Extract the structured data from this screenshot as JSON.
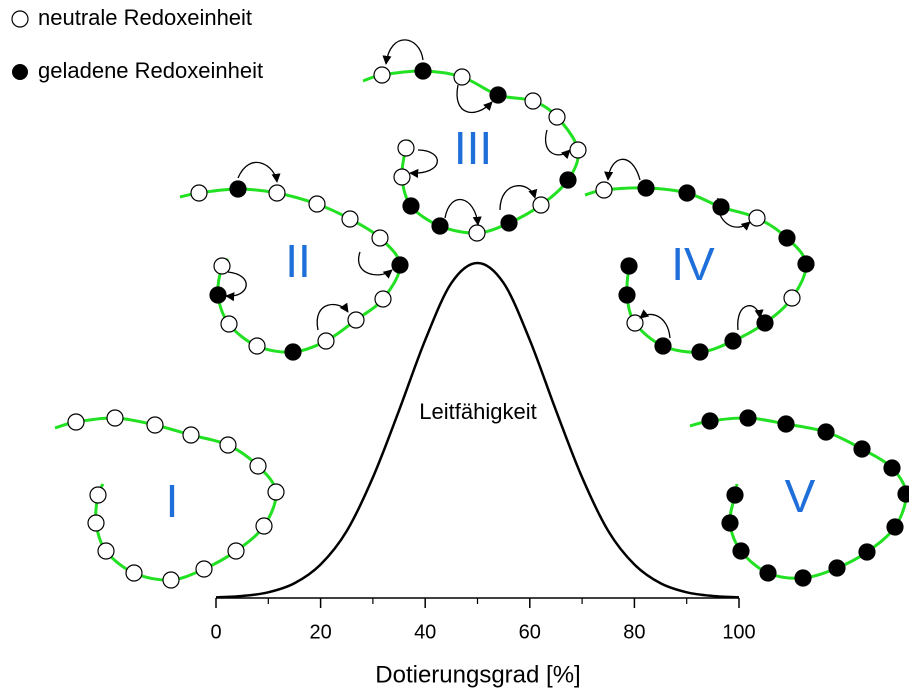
{
  "chart_data": {
    "type": "line",
    "annotation": "Leitfähigkeit",
    "xlabel": "Dotierungsgrad [%]",
    "x": [
      0,
      5,
      10,
      15,
      20,
      25,
      30,
      35,
      40,
      45,
      50,
      55,
      60,
      65,
      70,
      75,
      80,
      85,
      90,
      95,
      100
    ],
    "values": [
      0.002,
      0.006,
      0.017,
      0.044,
      0.1,
      0.2,
      0.36,
      0.56,
      0.77,
      0.94,
      1,
      0.94,
      0.77,
      0.56,
      0.36,
      0.2,
      0.1,
      0.044,
      0.017,
      0.006,
      0.002
    ],
    "color": "#000000",
    "xlim": [
      0,
      100
    ],
    "xticks": [
      0,
      20,
      40,
      60,
      80,
      100
    ],
    "xminorticks": [
      10,
      30,
      50,
      70,
      90
    ],
    "ylim": [
      0,
      1
    ]
  },
  "legend": [
    "neutrale Redoxeinheit",
    "geladene Redoxeinheit"
  ],
  "stages": [
    "I",
    "II",
    "III",
    "IV",
    "V"
  ]
}
